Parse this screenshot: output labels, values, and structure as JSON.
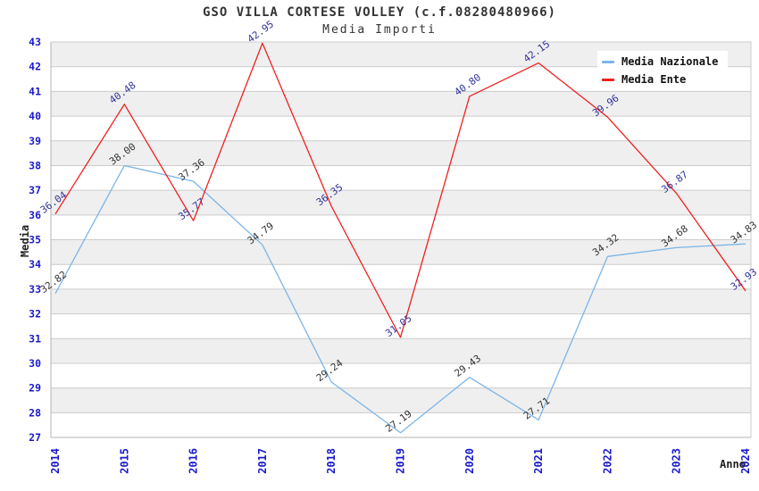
{
  "title": "GSO VILLA CORTESE VOLLEY (c.f.08280480966)",
  "subtitle": "Media Importi",
  "chart_data": {
    "type": "line",
    "categories": [
      "2014",
      "2015",
      "2016",
      "2017",
      "2018",
      "2019",
      "2020",
      "2021",
      "2022",
      "2023",
      "2024"
    ],
    "series": [
      {
        "name": "Media Nazionale",
        "color": "#7cb5e8",
        "label_color": "#333333",
        "values": [
          32.82,
          38.0,
          37.36,
          34.79,
          29.24,
          27.19,
          29.43,
          27.71,
          34.32,
          34.68,
          34.83
        ]
      },
      {
        "name": "Media Ente",
        "color": "#f02020",
        "label_color": "#333399",
        "values": [
          36.04,
          40.48,
          35.77,
          42.95,
          36.35,
          31.05,
          40.8,
          42.15,
          39.96,
          36.87,
          32.93
        ]
      }
    ],
    "xlabel": "Anno",
    "ylabel": "Media",
    "ylim": [
      27,
      43
    ],
    "y_tick_step": 1,
    "grid": "horizontal-bands",
    "band_color": "#efefef",
    "gridline_color": "#cccccc",
    "axis_line_color": "#b5b5b5",
    "tick_label_color": "#1a1acc",
    "legend_position": "top-right",
    "data_label_decimals": 2
  }
}
